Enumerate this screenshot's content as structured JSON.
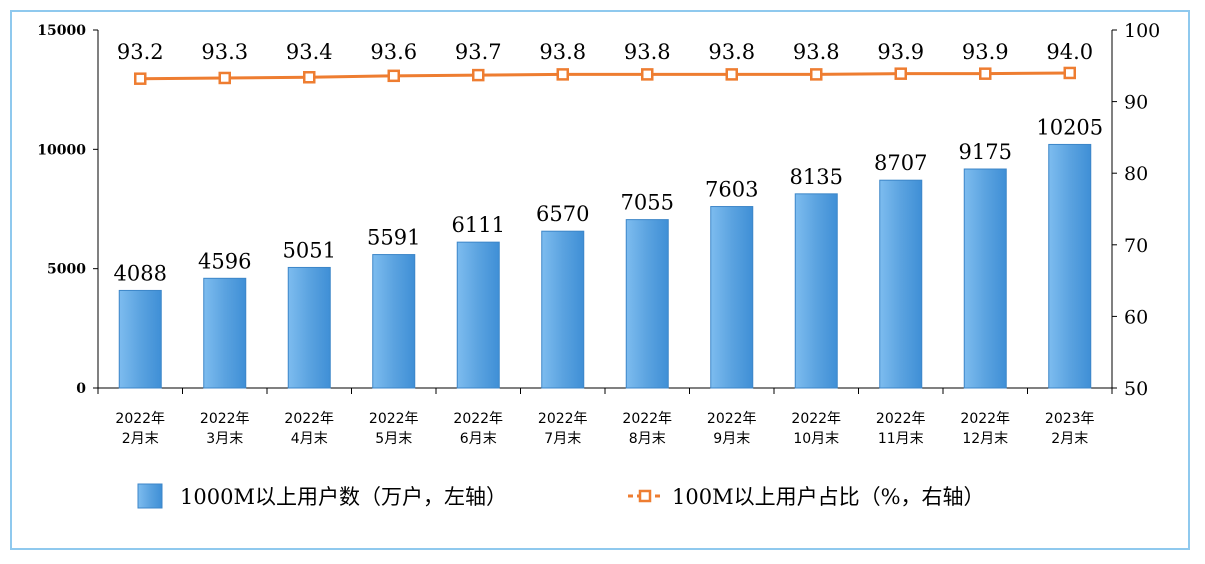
{
  "chart_data": {
    "type": "bar",
    "categories": [
      [
        "2022年",
        "2月末"
      ],
      [
        "2022年",
        "3月末"
      ],
      [
        "2022年",
        "4月末"
      ],
      [
        "2022年",
        "5月末"
      ],
      [
        "2022年",
        "6月末"
      ],
      [
        "2022年",
        "7月末"
      ],
      [
        "2022年",
        "8月末"
      ],
      [
        "2022年",
        "9月末"
      ],
      [
        "2022年",
        "10月末"
      ],
      [
        "2022年",
        "11月末"
      ],
      [
        "2022年",
        "12月末"
      ],
      [
        "2023年",
        "2月末"
      ]
    ],
    "series": [
      {
        "name": "1000M以上用户数（万户，左轴）",
        "type": "bar",
        "axis": "left",
        "color": "#5ba3e0",
        "values": [
          4088,
          4596,
          5051,
          5591,
          6111,
          6570,
          7055,
          7603,
          8135,
          8707,
          9175,
          10205
        ],
        "labels": [
          "4088",
          "4596",
          "5051",
          "5591",
          "6111",
          "6570",
          "7055",
          "7603",
          "8135",
          "8707",
          "9175",
          "10205"
        ]
      },
      {
        "name": "100M以上用户占比（%，右轴）",
        "type": "line",
        "axis": "right",
        "color": "#ee7d31",
        "marker": "square",
        "values": [
          93.2,
          93.3,
          93.4,
          93.6,
          93.7,
          93.8,
          93.8,
          93.8,
          93.8,
          93.9,
          93.9,
          94.0
        ],
        "labels": [
          "93.2",
          "93.3",
          "93.4",
          "93.6",
          "93.7",
          "93.8",
          "93.8",
          "93.8",
          "93.8",
          "93.9",
          "93.9",
          "94.0"
        ]
      }
    ],
    "y_left": {
      "min": 0,
      "max": 15000,
      "ticks": [
        "0",
        "5000",
        "10000",
        "15000"
      ]
    },
    "y_right": {
      "min": 50,
      "max": 100,
      "ticks": [
        "50",
        "60",
        "70",
        "80",
        "90",
        "100"
      ]
    },
    "grid": false,
    "legend_position": "bottom"
  }
}
